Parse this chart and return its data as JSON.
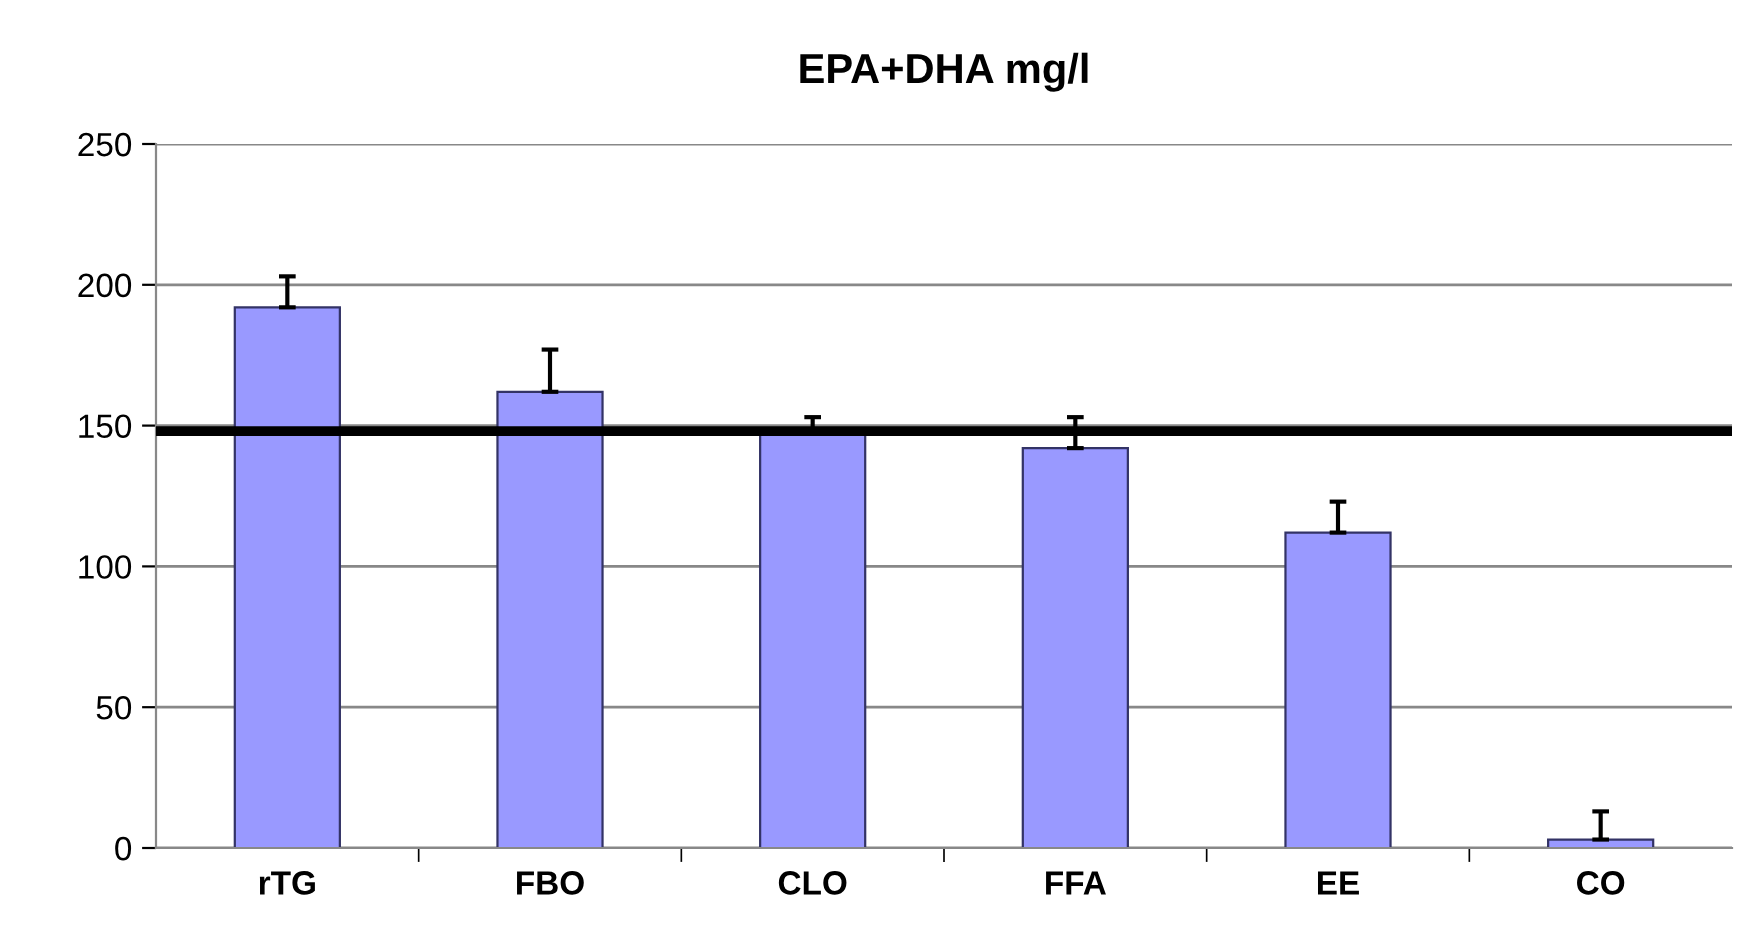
{
  "chart_data": {
    "type": "bar",
    "title": "EPA+DHA mg/l",
    "categories": [
      "rTG",
      "FBO",
      "CLO",
      "FFA",
      "EE",
      "CO"
    ],
    "values": [
      192,
      162,
      148,
      142,
      112,
      3
    ],
    "errors": [
      [
        192,
        203
      ],
      [
        162,
        177
      ],
      [
        148,
        153
      ],
      [
        142,
        153
      ],
      [
        112,
        123
      ],
      [
        3,
        13
      ]
    ],
    "color": "#9999ff",
    "ylim": [
      0,
      250
    ],
    "yticks": [
      0,
      50,
      100,
      150,
      200,
      250
    ],
    "grid": "y",
    "ref_lines": [
      {
        "axis": "y",
        "value": 148,
        "color": "#000000"
      }
    ]
  }
}
